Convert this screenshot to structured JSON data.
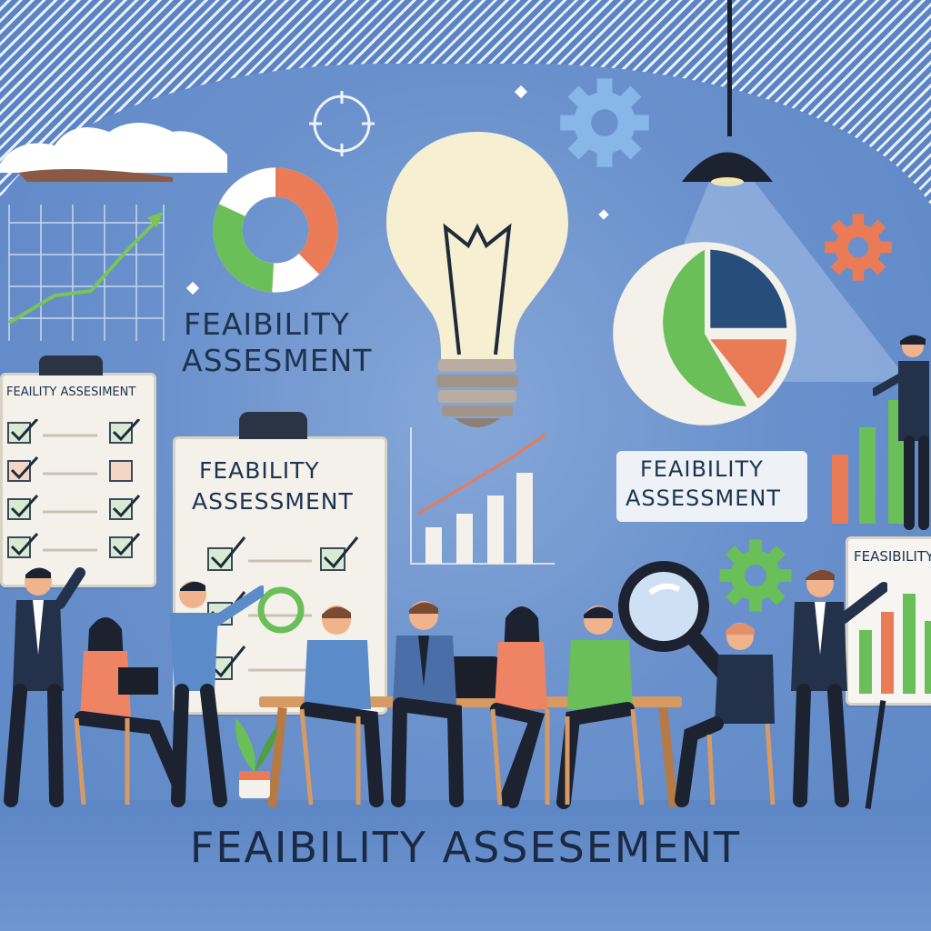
{
  "texts": {
    "top_center_line1": "FEAIBILITY",
    "top_center_line2": "ASSESMENT",
    "left_clipboard_title": "FEAILITY ASSESIMENT",
    "center_clipboard_line1": "FEABILITY",
    "center_clipboard_line2": "ASSESSMENT",
    "right_tag_line1": "FEAIBILITY",
    "right_tag_line2": "ASSESSMENT",
    "easel_title": "FEASIBILITY",
    "footer_title": "FEAIBILITY ASSESEMENT"
  },
  "colors": {
    "navy": "#1f3f66",
    "green": "#6bbf59",
    "orange": "#e97b57",
    "cream": "#f3f1ea",
    "bulb": "#f7f1d6",
    "sky": "#5a85c5"
  },
  "icons": [
    "cloud-icon",
    "target-icon",
    "gear-icon",
    "donut-chart-icon",
    "pie-chart-icon",
    "lightbulb-icon",
    "magnifier-icon",
    "pendant-lamp-icon",
    "plant-icon",
    "laptop-icon"
  ]
}
